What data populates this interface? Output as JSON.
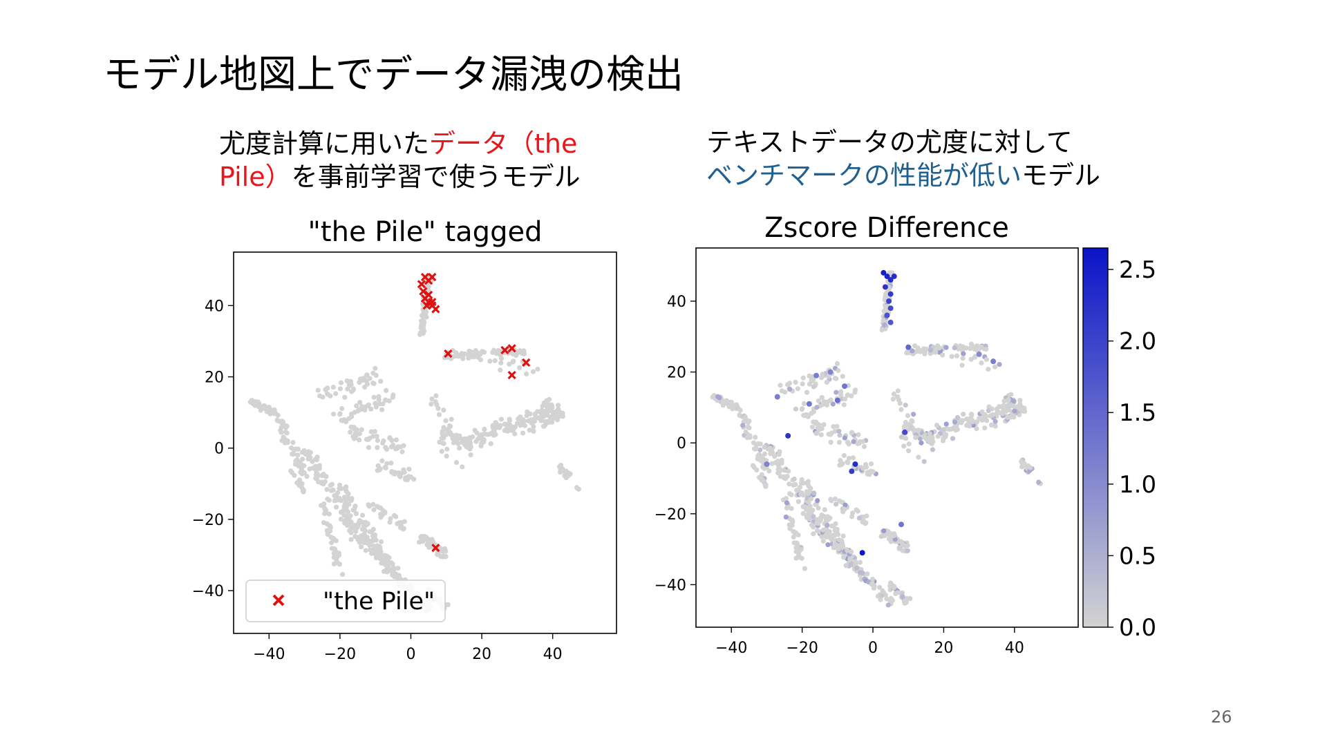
{
  "slide": {
    "title": "モデル地図上でデータ漏洩の検出",
    "left_caption": {
      "line1_plain": "尤度計算に用いた",
      "line1_red": "データ（the",
      "line2_red": "Pile）",
      "line2_plain": "を事前学習で使うモデル"
    },
    "right_caption": {
      "line1": "テキストデータの尤度に対して",
      "line2_blue": "ベンチマークの性能が低い",
      "line2_plain": "モデル"
    },
    "page_number": "26"
  },
  "chart_data": [
    {
      "type": "scatter",
      "title": "\"the Pile\" tagged",
      "xlabel": "",
      "ylabel": "",
      "xlim": [
        -50,
        58
      ],
      "ylim": [
        -52,
        55
      ],
      "xticks": [
        "−40",
        "−20",
        "0",
        "20",
        "40"
      ],
      "yticks": [
        "−40",
        "−20",
        "0",
        "20",
        "40"
      ],
      "legend": {
        "position": "lower-left",
        "label": "\"the Pile\""
      },
      "background_color": "#d3d3d3",
      "marker_color": "#e01010",
      "tagged_points": [
        [
          3,
          46
        ],
        [
          4,
          48
        ],
        [
          5,
          47
        ],
        [
          6,
          48
        ],
        [
          3.5,
          44
        ],
        [
          5,
          43
        ],
        [
          4,
          42
        ],
        [
          5,
          41
        ],
        [
          6,
          41
        ],
        [
          4.5,
          40
        ],
        [
          6,
          40
        ],
        [
          7,
          39
        ],
        [
          10.5,
          26.5
        ],
        [
          26.5,
          27.5
        ],
        [
          28.5,
          28
        ],
        [
          32.5,
          24
        ],
        [
          28.5,
          20.5
        ],
        [
          7,
          -28
        ]
      ]
    },
    {
      "type": "scatter",
      "title": "Zscore Difference",
      "xlabel": "",
      "ylabel": "",
      "xlim": [
        -50,
        58
      ],
      "ylim": [
        -52,
        55
      ],
      "xticks": [
        "−40",
        "−20",
        "0",
        "20",
        "40"
      ],
      "yticks": [
        "−40",
        "−20",
        "0",
        "20",
        "40"
      ],
      "colorbar": {
        "min": 0,
        "max": 2.65,
        "ticks": [
          "0.0",
          "0.5",
          "1.0",
          "1.5",
          "2.0",
          "2.5"
        ],
        "low_color": "#d3d3d3",
        "high_color": "#0a14c8"
      },
      "highlighted_points": [
        [
          4,
          47,
          2.4
        ],
        [
          5,
          46,
          2.3
        ],
        [
          3.5,
          44,
          2.2
        ],
        [
          5,
          42,
          2.1
        ],
        [
          4.5,
          40,
          2.0
        ],
        [
          5,
          38,
          1.9
        ],
        [
          4,
          36,
          1.8
        ],
        [
          5,
          34,
          1.7
        ],
        [
          3,
          48,
          2.5
        ],
        [
          6,
          47,
          2.3
        ],
        [
          -3,
          -31,
          2.6
        ],
        [
          -5,
          -6,
          2.3
        ],
        [
          -6,
          -8,
          2.1
        ],
        [
          -24,
          2,
          2.2
        ],
        [
          9,
          3,
          1.9
        ],
        [
          10,
          27,
          1.5
        ],
        [
          -18,
          11,
          1.3
        ],
        [
          -27,
          13,
          1.2
        ],
        [
          -12,
          20,
          1.1
        ],
        [
          -8,
          16,
          1.3
        ],
        [
          -30,
          -6,
          1.1
        ],
        [
          30,
          25,
          1.0
        ],
        [
          34,
          23,
          1.2
        ],
        [
          8,
          -23,
          1.3
        ],
        [
          -16,
          19,
          1.2
        ],
        [
          -10,
          12,
          1.4
        ]
      ]
    }
  ]
}
